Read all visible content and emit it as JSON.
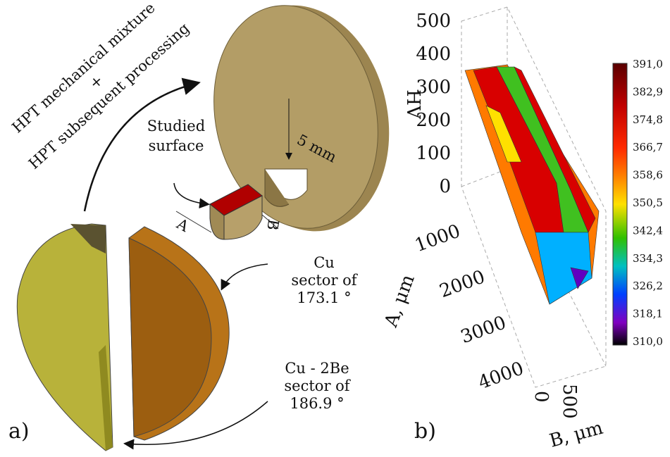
{
  "panel_a": {
    "label": "a)",
    "process": [
      "HPT mechanical mixture",
      "+",
      "HPT subsequent processing"
    ],
    "studied_surface": [
      "Studied",
      "surface"
    ],
    "dimension": "5 mm",
    "dim_a": "A",
    "dim_b": "B",
    "cu": [
      "Cu",
      "sector of",
      "173.1 °"
    ],
    "cube": [
      "Cu - 2Be",
      "sector of",
      "186.9 °"
    ]
  },
  "panel_b": {
    "label": "b)",
    "z_axis_title": "HV",
    "z_ticks": [
      "0",
      "100",
      "200",
      "300",
      "400",
      "500"
    ],
    "a_axis_title": "A, μm",
    "a_ticks": [
      "1000",
      "2000",
      "3000",
      "4000"
    ],
    "b_axis_title": "B, μm",
    "b_ticks": [
      "0",
      "500"
    ],
    "colorbar_ticks": [
      "391,0",
      "382,9",
      "374,8",
      "366,7",
      "358,6",
      "350,5",
      "342,4",
      "334,3",
      "326,2",
      "318,1",
      "310,0"
    ]
  }
}
